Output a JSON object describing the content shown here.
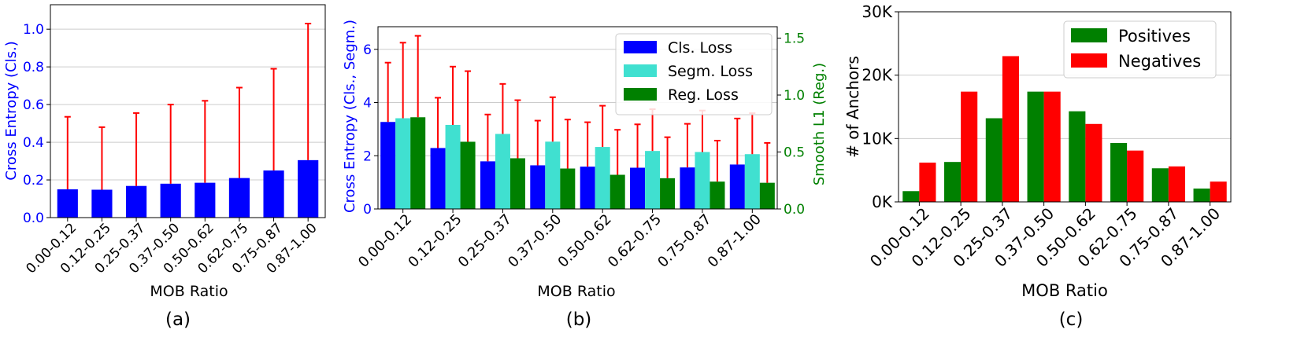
{
  "chart_data": [
    {
      "id": "a",
      "type": "bar",
      "caption": "(a)",
      "categories": [
        "0.00-0.12",
        "0.12-0.25",
        "0.25-0.37",
        "0.37-0.50",
        "0.50-0.62",
        "0.62-0.75",
        "0.75-0.87",
        "0.87-1.00"
      ],
      "values": [
        0.15,
        0.148,
        0.168,
        0.18,
        0.185,
        0.21,
        0.25,
        0.305
      ],
      "error_upper": [
        0.535,
        0.48,
        0.555,
        0.6,
        0.62,
        0.69,
        0.79,
        1.03
      ],
      "xlabel": "MOB Ratio",
      "ylabel": "Cross Entropy (Cls.)",
      "ylim": [
        0,
        1.13
      ],
      "yticks": [
        "0.0",
        "0.2",
        "0.4",
        "0.6",
        "0.8",
        "1.0"
      ],
      "grid": true,
      "colors": {
        "bar": "#0000ff",
        "error": "#ff0000",
        "axis_label": "#0000ff"
      }
    },
    {
      "id": "b",
      "type": "bar",
      "caption": "(b)",
      "categories": [
        "0.00-0.12",
        "0.12-0.25",
        "0.25-0.37",
        "0.37-0.50",
        "0.50-0.62",
        "0.62-0.75",
        "0.75-0.87",
        "0.87-1.00"
      ],
      "series": [
        {
          "name": "Cls. Loss",
          "axis": "left",
          "color": "#0000ff",
          "values": [
            3.27,
            2.29,
            1.79,
            1.64,
            1.59,
            1.55,
            1.56,
            1.67
          ],
          "error_upper": [
            5.5,
            4.18,
            3.55,
            3.32,
            3.26,
            3.18,
            3.2,
            3.4
          ]
        },
        {
          "name": "Segm. Loss",
          "axis": "left",
          "color": "#40e0d0",
          "values": [
            3.41,
            3.16,
            2.82,
            2.53,
            2.33,
            2.18,
            2.14,
            2.06
          ],
          "error_upper": [
            6.25,
            5.35,
            4.7,
            4.2,
            3.88,
            3.75,
            3.7,
            3.6
          ]
        },
        {
          "name": "Reg. Loss",
          "axis": "right",
          "color": "#008000",
          "values": [
            0.805,
            0.59,
            0.445,
            0.355,
            0.3,
            0.27,
            0.24,
            0.23
          ],
          "error_upper": [
            1.52,
            1.21,
            0.955,
            0.785,
            0.695,
            0.63,
            0.6,
            0.58
          ]
        }
      ],
      "xlabel": "MOB Ratio",
      "ylabel": "Cross Entropy (Cls., Segm.)",
      "ylabel_right": "Smooth L1 (Reg.)",
      "ylim": [
        0,
        6.85
      ],
      "ylim_right": [
        0,
        1.6
      ],
      "yticks": [
        "0",
        "2",
        "4",
        "6"
      ],
      "yticks_right": [
        "0.0",
        "0.5",
        "1.0",
        "1.5"
      ],
      "legend": "top-right",
      "grid": true,
      "colors": {
        "error": "#ff0000",
        "left_axis_label": "#0000ff",
        "right_axis_label": "#008000"
      }
    },
    {
      "id": "c",
      "type": "bar",
      "caption": "(c)",
      "categories": [
        "0.00-0.12",
        "0.12-0.25",
        "0.25-0.37",
        "0.37-0.50",
        "0.50-0.62",
        "0.62-0.75",
        "0.75-0.87",
        "0.87-1.00"
      ],
      "series": [
        {
          "name": "Positives",
          "color": "#008000",
          "values": [
            1700,
            6300,
            13200,
            17400,
            14300,
            9300,
            5300,
            2100
          ]
        },
        {
          "name": "Negatives",
          "color": "#ff0000",
          "values": [
            6200,
            17400,
            23000,
            17400,
            12300,
            8100,
            5600,
            3200
          ]
        }
      ],
      "xlabel": "MOB Ratio",
      "ylabel": "# of Anchors",
      "ylim": [
        0,
        30000
      ],
      "yticks": [
        "0K",
        "10K",
        "20K",
        "30K"
      ],
      "legend": "top-right",
      "grid": true
    }
  ]
}
